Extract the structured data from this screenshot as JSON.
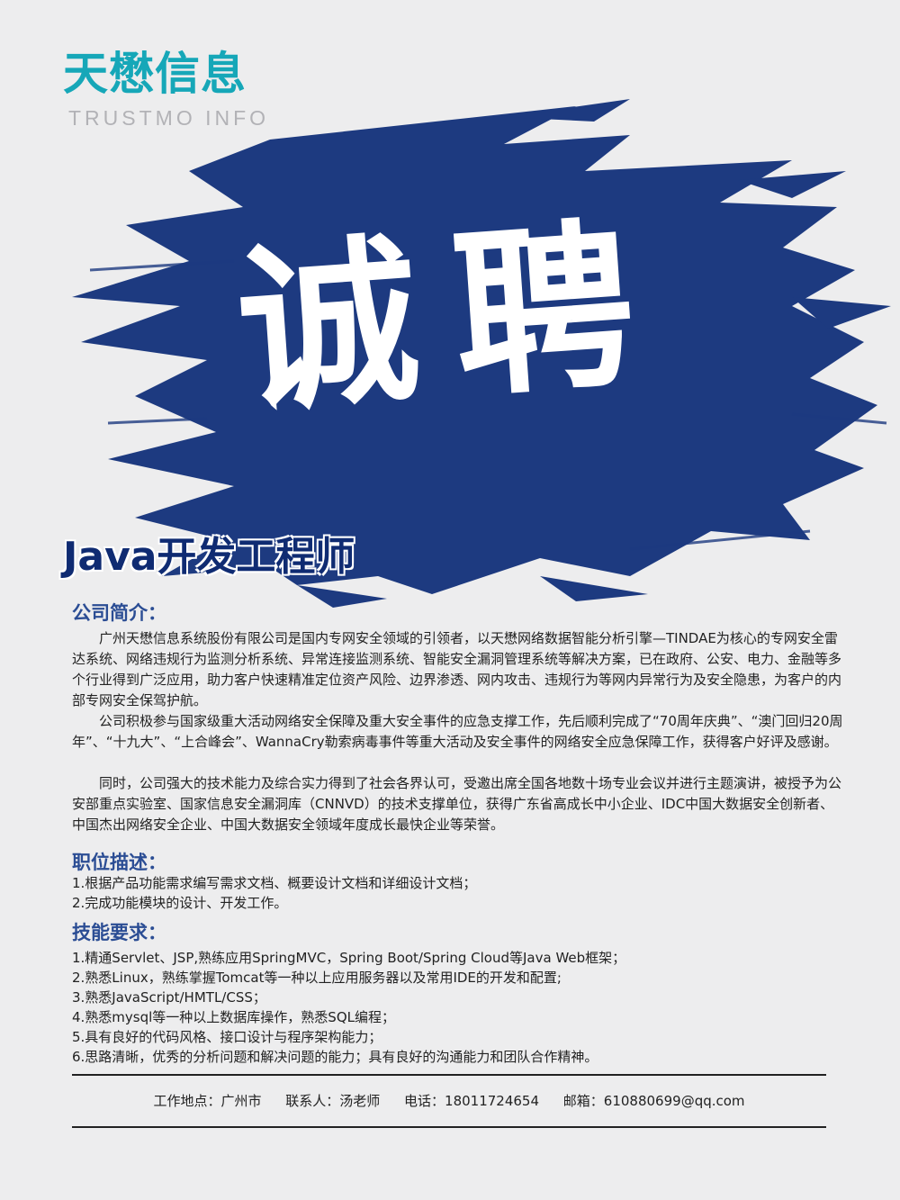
{
  "logo": {
    "name_cn": "天懋信息",
    "name_en": "TRUSTMO INFO"
  },
  "headline": "诚聘",
  "job_title": "Java开发工程师",
  "sections": {
    "company": {
      "heading": "公司简介：",
      "paragraphs": [
        "广州天懋信息系统股份有限公司是国内专网安全领域的引领者，以天懋网络数据智能分析引擎—TINDAE为核心的专网安全雷达系统、网络违规行为监测分析系统、异常连接监测系统、智能安全漏洞管理系统等解决方案，已在政府、公安、电力、金融等多个行业得到广泛应用，助力客户快速精准定位资产风险、边界渗透、网内攻击、违规行为等网内异常行为及安全隐患，为客户的内部专网安全保驾护航。",
        "公司积极参与国家级重大活动网络安全保障及重大安全事件的应急支撑工作，先后顺利完成了“70周年庆典”、“澳门回归20周年”、“十九大”、“上合峰会”、WannaCry勒索病毒事件等重大活动及安全事件的网络安全应急保障工作，获得客户好评及感谢。",
        "同时，公司强大的技术能力及综合实力得到了社会各界认可，受邀出席全国各地数十场专业会议并进行主题演讲，被授予为公安部重点实验室、国家信息安全漏洞库（CNNVD）的技术支撑单位，获得广东省高成长中小企业、IDC中国大数据安全创新者、中国杰出网络安全企业、中国大数据安全领域年度成长最快企业等荣誉。"
      ]
    },
    "duties": {
      "heading": "职位描述：",
      "items": [
        "1.根据产品功能需求编写需求文档、概要设计文档和详细设计文档；",
        "2.完成功能模块的设计、开发工作。"
      ]
    },
    "skills": {
      "heading": "技能要求：",
      "items": [
        "1.精通Servlet、JSP,熟练应用SpringMVC，Spring Boot/Spring Cloud等Java Web框架；",
        "2.熟悉Linux，熟练掌握Tomcat等一种以上应用服务器以及常用IDE的开发和配置;",
        "3.熟悉JavaScript/HMTL/CSS；",
        "4.熟悉mysql等一种以上数据库操作，熟悉SQL编程；",
        "5.具有良好的代码风格、接口设计与程序架构能力；",
        "6.思路清晰，优秀的分析问题和解决问题的能力；具有良好的沟通能力和团队合作精神。"
      ]
    }
  },
  "footer": {
    "location": "工作地点：广州市",
    "contact": "联系人：汤老师",
    "phone": "电话：18011724654",
    "email": "邮箱：610880699@qq.com"
  },
  "colors": {
    "background": "#ededee",
    "brush": "#1d3a80",
    "logo": "#16a7b8",
    "heading": "#2b4d94"
  }
}
